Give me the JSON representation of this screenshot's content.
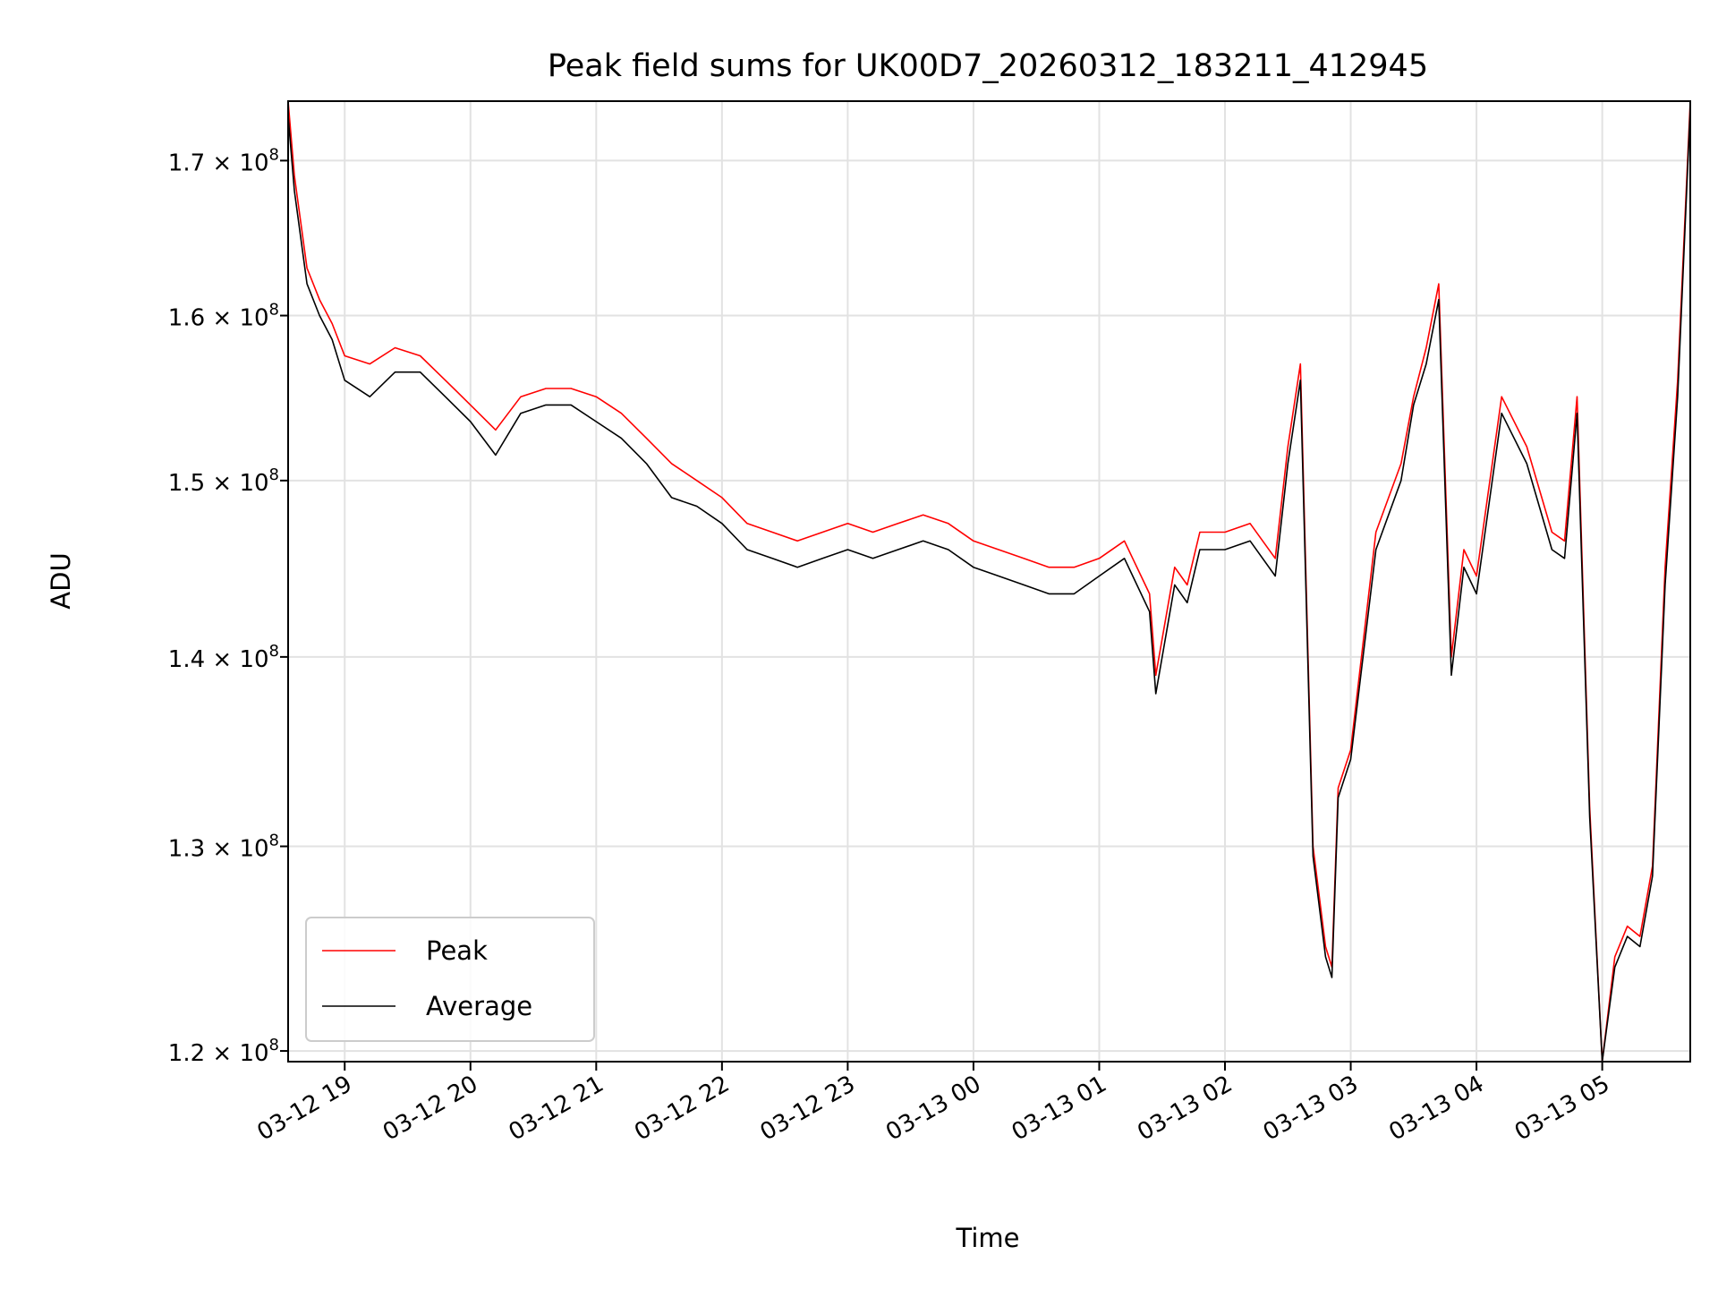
{
  "chart_data": {
    "type": "line",
    "title": "Peak field sums for UK00D7_20260312_183211_412945",
    "xlabel": "Time",
    "ylabel": "ADU",
    "yscale": "log",
    "ylim": [
      119500000,
      174000000
    ],
    "xlim_hours": [
      18.55,
      29.7
    ],
    "grid": true,
    "legend_position": "lower-left",
    "yticks": [
      {
        "value": 120000000,
        "label_mantissa": "1.2",
        "label_exp": "8"
      },
      {
        "value": 130000000,
        "label_mantissa": "1.3",
        "label_exp": "8"
      },
      {
        "value": 140000000,
        "label_mantissa": "1.4",
        "label_exp": "8"
      },
      {
        "value": 150000000,
        "label_mantissa": "1.5",
        "label_exp": "8"
      },
      {
        "value": 160000000,
        "label_mantissa": "1.6",
        "label_exp": "8"
      },
      {
        "value": 170000000,
        "label_mantissa": "1.7",
        "label_exp": "8"
      }
    ],
    "xticks": [
      {
        "hour": 19,
        "label": "03-12 19"
      },
      {
        "hour": 20,
        "label": "03-12 20"
      },
      {
        "hour": 21,
        "label": "03-12 21"
      },
      {
        "hour": 22,
        "label": "03-12 22"
      },
      {
        "hour": 23,
        "label": "03-12 23"
      },
      {
        "hour": 24,
        "label": "03-13 00"
      },
      {
        "hour": 25,
        "label": "03-13 01"
      },
      {
        "hour": 26,
        "label": "03-13 02"
      },
      {
        "hour": 27,
        "label": "03-13 03"
      },
      {
        "hour": 28,
        "label": "03-13 04"
      },
      {
        "hour": 29,
        "label": "03-13 05"
      }
    ],
    "series": [
      {
        "name": "Peak",
        "color": "#ff0000",
        "x_hours": [
          18.55,
          18.6,
          18.7,
          18.8,
          18.9,
          19.0,
          19.2,
          19.4,
          19.6,
          19.8,
          20.0,
          20.2,
          20.4,
          20.6,
          20.8,
          21.0,
          21.2,
          21.4,
          21.6,
          21.8,
          22.0,
          22.2,
          22.4,
          22.6,
          22.8,
          23.0,
          23.2,
          23.4,
          23.6,
          23.8,
          24.0,
          24.2,
          24.4,
          24.6,
          24.8,
          25.0,
          25.2,
          25.4,
          25.45,
          25.6,
          25.7,
          25.8,
          26.0,
          26.2,
          26.4,
          26.5,
          26.6,
          26.7,
          26.8,
          26.85,
          26.9,
          27.0,
          27.2,
          27.4,
          27.5,
          27.6,
          27.7,
          27.8,
          27.9,
          28.0,
          28.2,
          28.4,
          28.6,
          28.7,
          28.8,
          28.9,
          29.0,
          29.1,
          29.2,
          29.3,
          29.4,
          29.5,
          29.6,
          29.7
        ],
        "values": [
          174000000,
          169000000,
          163000000,
          161000000,
          159500000,
          157500000,
          157000000,
          158000000,
          157500000,
          156000000,
          154500000,
          153000000,
          155000000,
          155500000,
          155500000,
          155000000,
          154000000,
          152500000,
          151000000,
          150000000,
          149000000,
          147500000,
          147000000,
          146500000,
          147000000,
          147500000,
          147000000,
          147500000,
          148000000,
          147500000,
          146500000,
          146000000,
          145500000,
          145000000,
          145000000,
          145500000,
          146500000,
          143500000,
          139000000,
          145000000,
          144000000,
          147000000,
          147000000,
          147500000,
          145500000,
          152000000,
          157000000,
          130000000,
          125000000,
          124000000,
          133000000,
          135000000,
          147000000,
          151000000,
          155000000,
          158000000,
          162000000,
          140000000,
          146000000,
          144500000,
          155000000,
          152000000,
          147000000,
          146500000,
          155000000,
          132000000,
          119500000,
          124500000,
          126000000,
          125500000,
          129000000,
          145000000,
          156000000,
          174000000
        ]
      },
      {
        "name": "Average",
        "color": "#000000",
        "x_hours": [
          18.55,
          18.6,
          18.7,
          18.8,
          18.9,
          19.0,
          19.2,
          19.4,
          19.6,
          19.8,
          20.0,
          20.2,
          20.4,
          20.6,
          20.8,
          21.0,
          21.2,
          21.4,
          21.6,
          21.8,
          22.0,
          22.2,
          22.4,
          22.6,
          22.8,
          23.0,
          23.2,
          23.4,
          23.6,
          23.8,
          24.0,
          24.2,
          24.4,
          24.6,
          24.8,
          25.0,
          25.2,
          25.4,
          25.45,
          25.6,
          25.7,
          25.8,
          26.0,
          26.2,
          26.4,
          26.5,
          26.6,
          26.7,
          26.8,
          26.85,
          26.9,
          27.0,
          27.2,
          27.4,
          27.5,
          27.6,
          27.7,
          27.8,
          27.9,
          28.0,
          28.2,
          28.4,
          28.6,
          28.7,
          28.8,
          28.9,
          29.0,
          29.1,
          29.2,
          29.3,
          29.4,
          29.5,
          29.6,
          29.7
        ],
        "values": [
          173000000,
          168000000,
          162000000,
          160000000,
          158500000,
          156000000,
          155000000,
          156500000,
          156500000,
          155000000,
          153500000,
          151500000,
          154000000,
          154500000,
          154500000,
          153500000,
          152500000,
          151000000,
          149000000,
          148500000,
          147500000,
          146000000,
          145500000,
          145000000,
          145500000,
          146000000,
          145500000,
          146000000,
          146500000,
          146000000,
          145000000,
          144500000,
          144000000,
          143500000,
          143500000,
          144500000,
          145500000,
          142500000,
          138000000,
          144000000,
          143000000,
          146000000,
          146000000,
          146500000,
          144500000,
          151000000,
          156000000,
          129500000,
          124500000,
          123500000,
          132500000,
          134500000,
          146000000,
          150000000,
          154500000,
          157000000,
          161000000,
          139000000,
          145000000,
          143500000,
          154000000,
          151000000,
          146000000,
          145500000,
          154000000,
          131500000,
          119500000,
          124000000,
          125500000,
          125000000,
          128500000,
          144000000,
          155000000,
          173500000
        ]
      }
    ]
  }
}
